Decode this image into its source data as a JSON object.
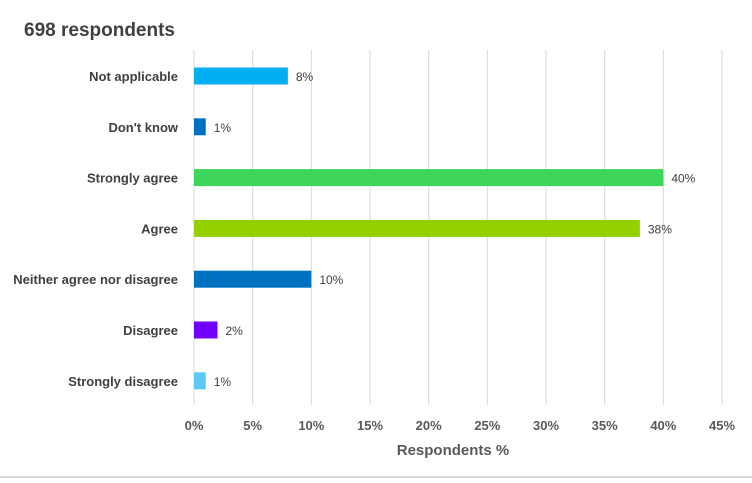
{
  "chart_data": {
    "type": "bar",
    "orientation": "horizontal",
    "title": "698 respondents",
    "xlabel": "Respondents %",
    "ylabel": "",
    "xlim": [
      0,
      45
    ],
    "x_ticks": [
      "0%",
      "5%",
      "10%",
      "15%",
      "20%",
      "25%",
      "30%",
      "35%",
      "40%",
      "45%"
    ],
    "grid": "vertical",
    "categories": [
      "Not applicable",
      "Don't know",
      "Strongly agree",
      "Agree",
      "Neither agree nor disagree",
      "Disagree",
      "Strongly disagree"
    ],
    "values": [
      8,
      1,
      40,
      38,
      10,
      2,
      1
    ],
    "data_labels": [
      "8%",
      "1%",
      "40%",
      "38%",
      "10%",
      "2%",
      "1%"
    ],
    "colors": [
      "#00b0f0",
      "#0070c0",
      "#3dd65a",
      "#92d000",
      "#0070c0",
      "#7000ff",
      "#5bc8f5"
    ]
  }
}
